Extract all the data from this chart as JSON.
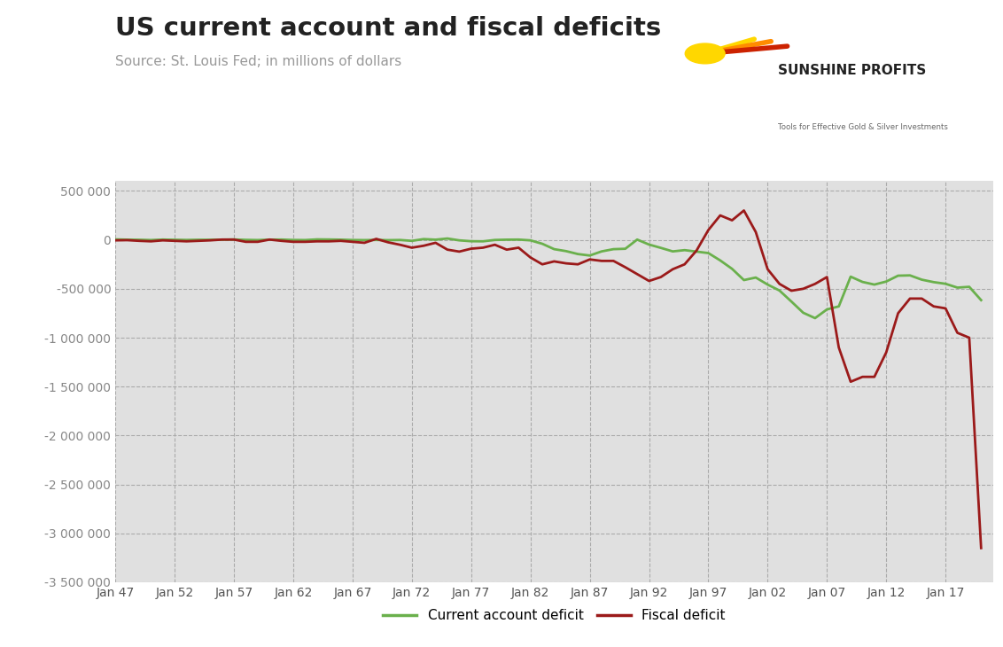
{
  "title": "US current account and fiscal deficits",
  "subtitle": "Source: St. Louis Fed; in millions of dollars",
  "title_fontsize": 21,
  "subtitle_fontsize": 11,
  "background_color": "#ffffff",
  "plot_bg_color": "#e0e0e0",
  "grid_color": "#aaaaaa",
  "ylim": [
    -3500000,
    600000
  ],
  "yticks": [
    500000,
    0,
    -500000,
    -1000000,
    -1500000,
    -2000000,
    -2500000,
    -3000000,
    -3500000
  ],
  "xtick_labels": [
    "Jan 47",
    "Jan 52",
    "Jan 57",
    "Jan 62",
    "Jan 67",
    "Jan 72",
    "Jan 77",
    "Jan 82",
    "Jan 87",
    "Jan 92",
    "Jan 97",
    "Jan 02",
    "Jan 07",
    "Jan 12",
    "Jan 17"
  ],
  "xtick_years": [
    1947,
    1952,
    1957,
    1962,
    1967,
    1972,
    1977,
    1982,
    1987,
    1992,
    1997,
    2002,
    2007,
    2012,
    2017
  ],
  "ca_color": "#6ab04c",
  "fiscal_color": "#9b1a1a",
  "legend_ca": "Current account deficit",
  "legend_fiscal": "Fiscal deficit",
  "xlim_left": 1947,
  "xlim_right": 2021,
  "current_account": {
    "years": [
      1947,
      1948,
      1949,
      1950,
      1951,
      1952,
      1953,
      1954,
      1955,
      1956,
      1957,
      1958,
      1959,
      1960,
      1961,
      1962,
      1963,
      1964,
      1965,
      1966,
      1967,
      1968,
      1969,
      1970,
      1971,
      1972,
      1973,
      1974,
      1975,
      1976,
      1977,
      1978,
      1979,
      1980,
      1981,
      1982,
      1983,
      1984,
      1985,
      1986,
      1987,
      1988,
      1989,
      1990,
      1991,
      1992,
      1993,
      1994,
      1995,
      1996,
      1997,
      1998,
      1999,
      2000,
      2001,
      2002,
      2003,
      2004,
      2005,
      2006,
      2007,
      2008,
      2009,
      2010,
      2011,
      2012,
      2013,
      2014,
      2015,
      2016,
      2017,
      2018,
      2019,
      2020
    ],
    "values": [
      5000,
      2000,
      1000,
      -2000,
      3000,
      1000,
      -1000,
      1000,
      1000,
      2000,
      4000,
      0,
      -2000,
      2000,
      3000,
      -1000,
      -2000,
      5000,
      4000,
      2000,
      -1500,
      -2500,
      -800,
      -3000,
      -1200,
      -10000,
      8000,
      2000,
      14000,
      -5000,
      -14000,
      -15000,
      -1000,
      2000,
      3000,
      -5000,
      -40000,
      -95000,
      -115000,
      -145000,
      -160000,
      -118000,
      -95000,
      -91000,
      3000,
      -48000,
      -82000,
      -118000,
      -105000,
      -120000,
      -135000,
      -210000,
      -296000,
      -411000,
      -385000,
      -457000,
      -518000,
      -630000,
      -745000,
      -800000,
      -711000,
      -680000,
      -376000,
      -430000,
      -457000,
      -426000,
      -366000,
      -363000,
      -407000,
      -432000,
      -449000,
      -488000,
      -480000,
      -616000
    ]
  },
  "fiscal": {
    "years": [
      1947,
      1948,
      1949,
      1950,
      1951,
      1952,
      1953,
      1954,
      1955,
      1956,
      1957,
      1958,
      1959,
      1960,
      1961,
      1962,
      1963,
      1964,
      1965,
      1966,
      1967,
      1968,
      1969,
      1970,
      1971,
      1972,
      1973,
      1974,
      1975,
      1976,
      1977,
      1978,
      1979,
      1980,
      1981,
      1982,
      1983,
      1984,
      1985,
      1986,
      1987,
      1988,
      1989,
      1990,
      1991,
      1992,
      1993,
      1994,
      1995,
      1996,
      1997,
      1998,
      1999,
      2000,
      2001,
      2002,
      2003,
      2004,
      2005,
      2006,
      2007,
      2008,
      2009,
      2010,
      2011,
      2012,
      2013,
      2014,
      2015,
      2016,
      2017,
      2018,
      2019,
      2020
    ],
    "values": [
      -5000,
      -3000,
      -10000,
      -15000,
      -5000,
      -10000,
      -15000,
      -10000,
      -5000,
      3000,
      3000,
      -20000,
      -20000,
      3000,
      -10000,
      -20000,
      -20000,
      -15000,
      -15000,
      -10000,
      -20000,
      -30000,
      10000,
      -25000,
      -50000,
      -80000,
      -60000,
      -30000,
      -100000,
      -120000,
      -90000,
      -80000,
      -50000,
      -100000,
      -80000,
      -180000,
      -250000,
      -220000,
      -240000,
      -250000,
      -200000,
      -215000,
      -215000,
      -280000,
      -350000,
      -420000,
      -380000,
      -300000,
      -250000,
      -110000,
      100000,
      250000,
      200000,
      300000,
      80000,
      -300000,
      -450000,
      -520000,
      -500000,
      -450000,
      -380000,
      -1100000,
      -1450000,
      -1400000,
      -1400000,
      -1150000,
      -750000,
      -600000,
      -600000,
      -680000,
      -700000,
      -950000,
      -1000000,
      -3150000
    ]
  }
}
